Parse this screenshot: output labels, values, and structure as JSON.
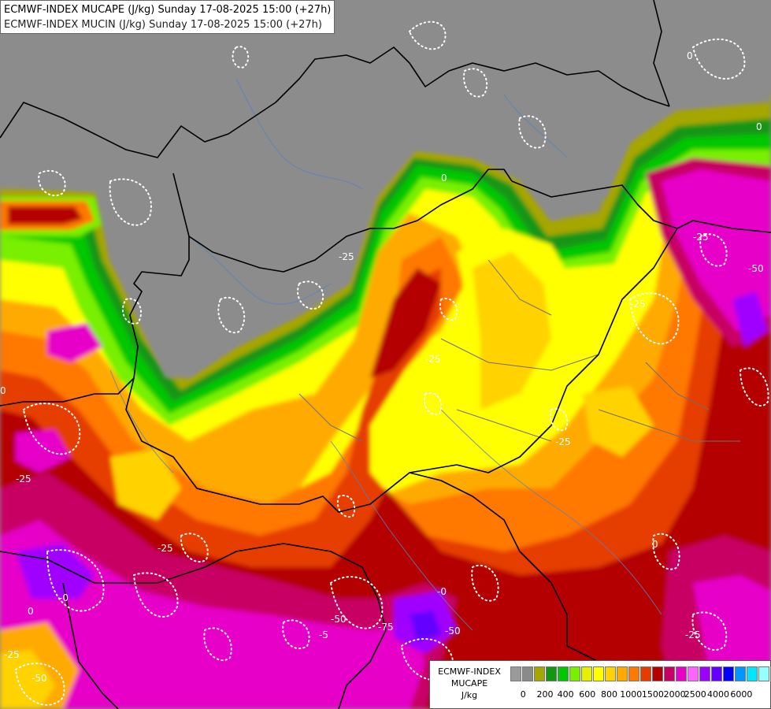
{
  "title": {
    "line1": "ECMWF-INDEX MUCAPE (J/kg) Sunday 17-08-2025 15:00 (+27h)",
    "line2": "ECMWF-INDEX MUCIN (J/kg) Sunday 17-08-2025 15:00 (+27h)"
  },
  "legend": {
    "label_line1": "ECMWF-INDEX",
    "label_line2": "MUCAPE",
    "label_line3": "J/kg",
    "colors": [
      "#9a9a9a",
      "#8a8a8a",
      "#a6a600",
      "#149614",
      "#00c800",
      "#78f000",
      "#e6f000",
      "#ffff00",
      "#ffd200",
      "#ffaa00",
      "#ff7800",
      "#e63c00",
      "#b40000",
      "#c80064",
      "#e600c8",
      "#ff64ff",
      "#a000ff",
      "#6400ff",
      "#0000ff",
      "#0096ff",
      "#00e6ff",
      "#96ffff",
      "#ffffff"
    ],
    "ticks": [
      {
        "label": "0",
        "pos": 0.05
      },
      {
        "label": "200",
        "pos": 0.135
      },
      {
        "label": "400",
        "pos": 0.215
      },
      {
        "label": "600",
        "pos": 0.3
      },
      {
        "label": "800",
        "pos": 0.385
      },
      {
        "label": "1000",
        "pos": 0.47
      },
      {
        "label": "1500",
        "pos": 0.555
      },
      {
        "label": "2000",
        "pos": 0.64
      },
      {
        "label": "2500",
        "pos": 0.72
      },
      {
        "label": "4000",
        "pos": 0.81
      },
      {
        "label": "6000",
        "pos": 0.9
      }
    ]
  },
  "cin_labels": [
    "-25",
    "-50",
    "-0",
    "-5",
    "0",
    "-75"
  ]
}
